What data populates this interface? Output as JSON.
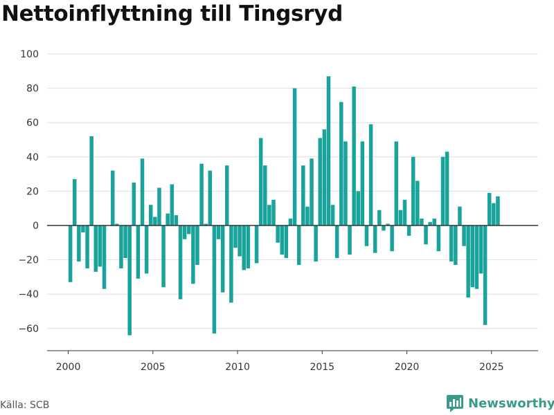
{
  "chart_data": {
    "type": "bar",
    "title": "Nettoinflyttning till Tingsryd",
    "xlabel": "",
    "ylabel": "",
    "ylim": [
      -70,
      100
    ],
    "xlim": [
      1998.75,
      2027.75
    ],
    "yticks": [
      100,
      80,
      60,
      40,
      20,
      0,
      -20,
      -40,
      -60
    ],
    "xticks": [
      2000,
      2005,
      2010,
      2015,
      2020,
      2025
    ],
    "grid": true,
    "legend": "none",
    "bar_color": "#1aa39a",
    "x": [
      2000.125,
      2000.375,
      2000.625,
      2000.875,
      2001.125,
      2001.375,
      2001.625,
      2001.875,
      2002.125,
      2002.375,
      2002.625,
      2002.875,
      2003.125,
      2003.375,
      2003.625,
      2003.875,
      2004.125,
      2004.375,
      2004.625,
      2004.875,
      2005.125,
      2005.375,
      2005.625,
      2005.875,
      2006.125,
      2006.375,
      2006.625,
      2006.875,
      2007.125,
      2007.375,
      2007.625,
      2007.875,
      2008.125,
      2008.375,
      2008.625,
      2008.875,
      2009.125,
      2009.375,
      2009.625,
      2009.875,
      2010.125,
      2010.375,
      2010.625,
      2010.875,
      2011.125,
      2011.375,
      2011.625,
      2011.875,
      2012.125,
      2012.375,
      2012.625,
      2012.875,
      2013.125,
      2013.375,
      2013.625,
      2013.875,
      2014.125,
      2014.375,
      2014.625,
      2014.875,
      2015.125,
      2015.375,
      2015.625,
      2015.875,
      2016.125,
      2016.375,
      2016.625,
      2016.875,
      2017.125,
      2017.375,
      2017.625,
      2017.875,
      2018.125,
      2018.375,
      2018.625,
      2018.875,
      2019.125,
      2019.375,
      2019.625,
      2019.875,
      2020.125,
      2020.375,
      2020.625,
      2020.875,
      2021.125,
      2021.375,
      2021.625,
      2021.875,
      2022.125,
      2022.375,
      2022.625,
      2022.875,
      2023.125,
      2023.375,
      2023.625,
      2023.875,
      2024.125,
      2024.375,
      2024.625,
      2024.875,
      2025.125,
      2025.375
    ],
    "values": [
      -33,
      27,
      -21,
      -4,
      -25,
      52,
      -27,
      -24,
      -37,
      0,
      32,
      1,
      -25,
      -19,
      -64,
      25,
      -31,
      39,
      -28,
      12,
      5,
      22,
      -36,
      7,
      24,
      6,
      -43,
      -8,
      -5,
      -34,
      -23,
      36,
      1,
      32,
      -63,
      -8,
      -39,
      35,
      -45,
      -13,
      -18,
      -26,
      -25,
      0,
      -22,
      51,
      35,
      12,
      15,
      -10,
      -17,
      -19,
      4,
      80,
      -23,
      35,
      11,
      39,
      -21,
      51,
      56,
      87,
      12,
      -19,
      72,
      49,
      -17,
      81,
      20,
      49,
      -12,
      59,
      -16,
      9,
      -3,
      1,
      -15,
      49,
      9,
      15,
      -6,
      40,
      26,
      4,
      -11,
      2,
      4,
      -15,
      40,
      43,
      -21,
      -23,
      11,
      -12,
      -42,
      -36,
      -37,
      -28,
      -58,
      19,
      13,
      17
    ]
  },
  "footer": {
    "source": "Källa: SCB",
    "brand": "Newsworthy"
  }
}
